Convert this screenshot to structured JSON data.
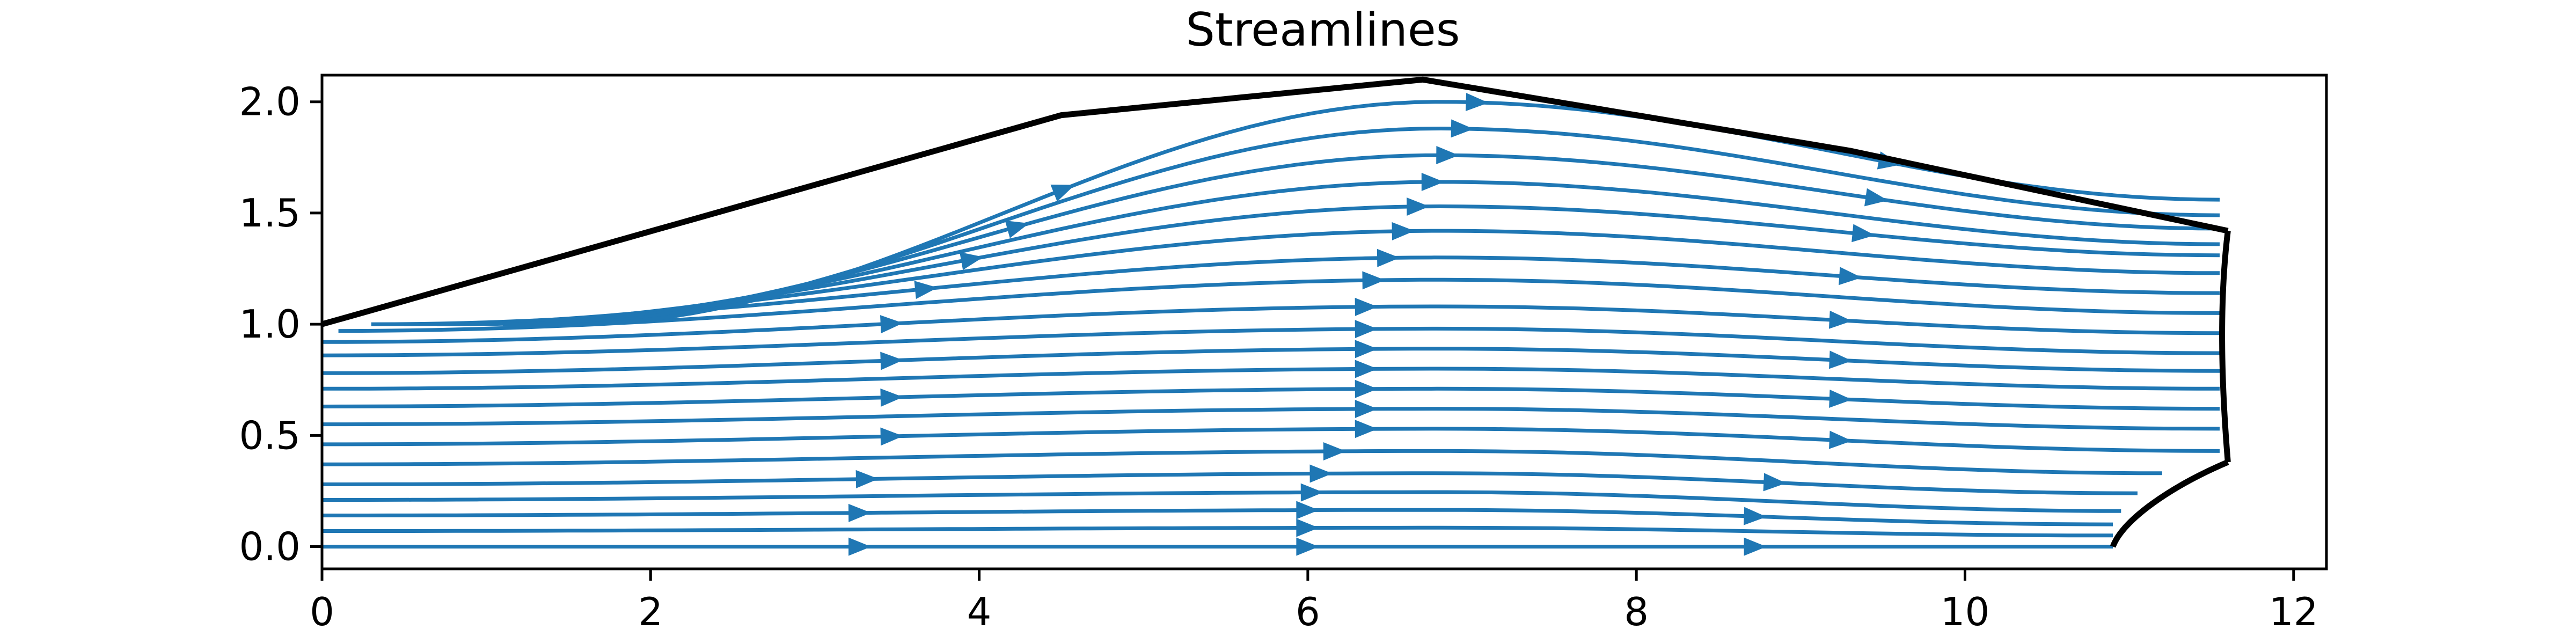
{
  "chart_data": {
    "type": "line",
    "title": "Streamlines",
    "xlabel": "",
    "ylabel": "",
    "xlim": [
      0,
      12.2
    ],
    "ylim": [
      -0.1,
      2.12
    ],
    "x_ticks": [
      0,
      2,
      4,
      6,
      8,
      10,
      12
    ],
    "y_ticks": [
      0.0,
      0.5,
      1.0,
      1.5,
      2.0
    ],
    "x_tick_labels": [
      "0",
      "2",
      "4",
      "6",
      "8",
      "10",
      "12"
    ],
    "y_tick_labels": [
      "0.0",
      "0.5",
      "1.0",
      "1.5",
      "2.0"
    ],
    "grid": false,
    "legend": "none",
    "colors": {
      "streamline": "#1f77b4",
      "boundary": "#000000"
    },
    "boundary": {
      "upper_wall": [
        [
          0,
          1.0
        ],
        [
          4.5,
          1.94
        ],
        [
          6.7,
          2.1
        ],
        [
          9.3,
          1.78
        ],
        [
          11.6,
          1.42
        ]
      ],
      "outlet": [
        [
          11.6,
          1.42
        ],
        [
          11.53,
          1.0
        ],
        [
          11.6,
          0.38
        ]
      ],
      "obstacle": [
        [
          11.6,
          0.38
        ],
        [
          11.25,
          0.27
        ],
        [
          10.96,
          0.12
        ],
        [
          10.9,
          0.0
        ]
      ]
    },
    "streamlines": [
      {
        "y0": 0.0,
        "ymid": 0.0,
        "yend": 0.0,
        "xs": 0,
        "xe": 10.9
      },
      {
        "y0": 0.07,
        "ymid": 0.085,
        "yend": 0.05,
        "xs": 0,
        "xe": 10.9
      },
      {
        "y0": 0.14,
        "ymid": 0.165,
        "yend": 0.1,
        "xs": 0,
        "xe": 10.9
      },
      {
        "y0": 0.21,
        "ymid": 0.245,
        "yend": 0.16,
        "xs": 0,
        "xe": 10.95
      },
      {
        "y0": 0.28,
        "ymid": 0.33,
        "yend": 0.24,
        "xs": 0,
        "xe": 11.05
      },
      {
        "y0": 0.37,
        "ymid": 0.43,
        "yend": 0.33,
        "xs": 0,
        "xe": 11.2
      },
      {
        "y0": 0.46,
        "ymid": 0.53,
        "yend": 0.43,
        "xs": 0,
        "xe": 11.55
      },
      {
        "y0": 0.55,
        "ymid": 0.62,
        "yend": 0.53,
        "xs": 0,
        "xe": 11.55
      },
      {
        "y0": 0.63,
        "ymid": 0.71,
        "yend": 0.62,
        "xs": 0,
        "xe": 11.55
      },
      {
        "y0": 0.71,
        "ymid": 0.8,
        "yend": 0.71,
        "xs": 0,
        "xe": 11.55
      },
      {
        "y0": 0.78,
        "ymid": 0.89,
        "yend": 0.79,
        "xs": 0,
        "xe": 11.55
      },
      {
        "y0": 0.86,
        "ymid": 0.98,
        "yend": 0.87,
        "xs": 0,
        "xe": 11.55
      },
      {
        "y0": 0.92,
        "ymid": 1.08,
        "yend": 0.96,
        "xs": 0,
        "xe": 11.55
      },
      {
        "y0": 0.97,
        "ymid": 1.2,
        "yend": 1.05,
        "xs": 0.1,
        "xe": 11.55
      },
      {
        "y0": 1.0,
        "ymid": 1.3,
        "yend": 1.14,
        "xs": 0.3,
        "xe": 11.55
      },
      {
        "y0": 1.0,
        "ymid": 1.42,
        "yend": 1.23,
        "xs": 0.5,
        "xe": 11.55
      },
      {
        "y0": 1.0,
        "ymid": 1.53,
        "yend": 1.31,
        "xs": 0.7,
        "xe": 11.55
      },
      {
        "y0": 1.0,
        "ymid": 1.64,
        "yend": 1.36,
        "xs": 0.9,
        "xe": 11.55
      },
      {
        "y0": 1.0,
        "ymid": 1.76,
        "yend": 1.43,
        "xs": 1.1,
        "xe": 11.55
      },
      {
        "y0": 1.0,
        "ymid": 1.88,
        "yend": 1.49,
        "xs": 1.3,
        "xe": 11.55
      },
      {
        "y0": 1.0,
        "ymid": 2.0,
        "yend": 1.56,
        "xs": 1.5,
        "xe": 11.55
      }
    ]
  }
}
